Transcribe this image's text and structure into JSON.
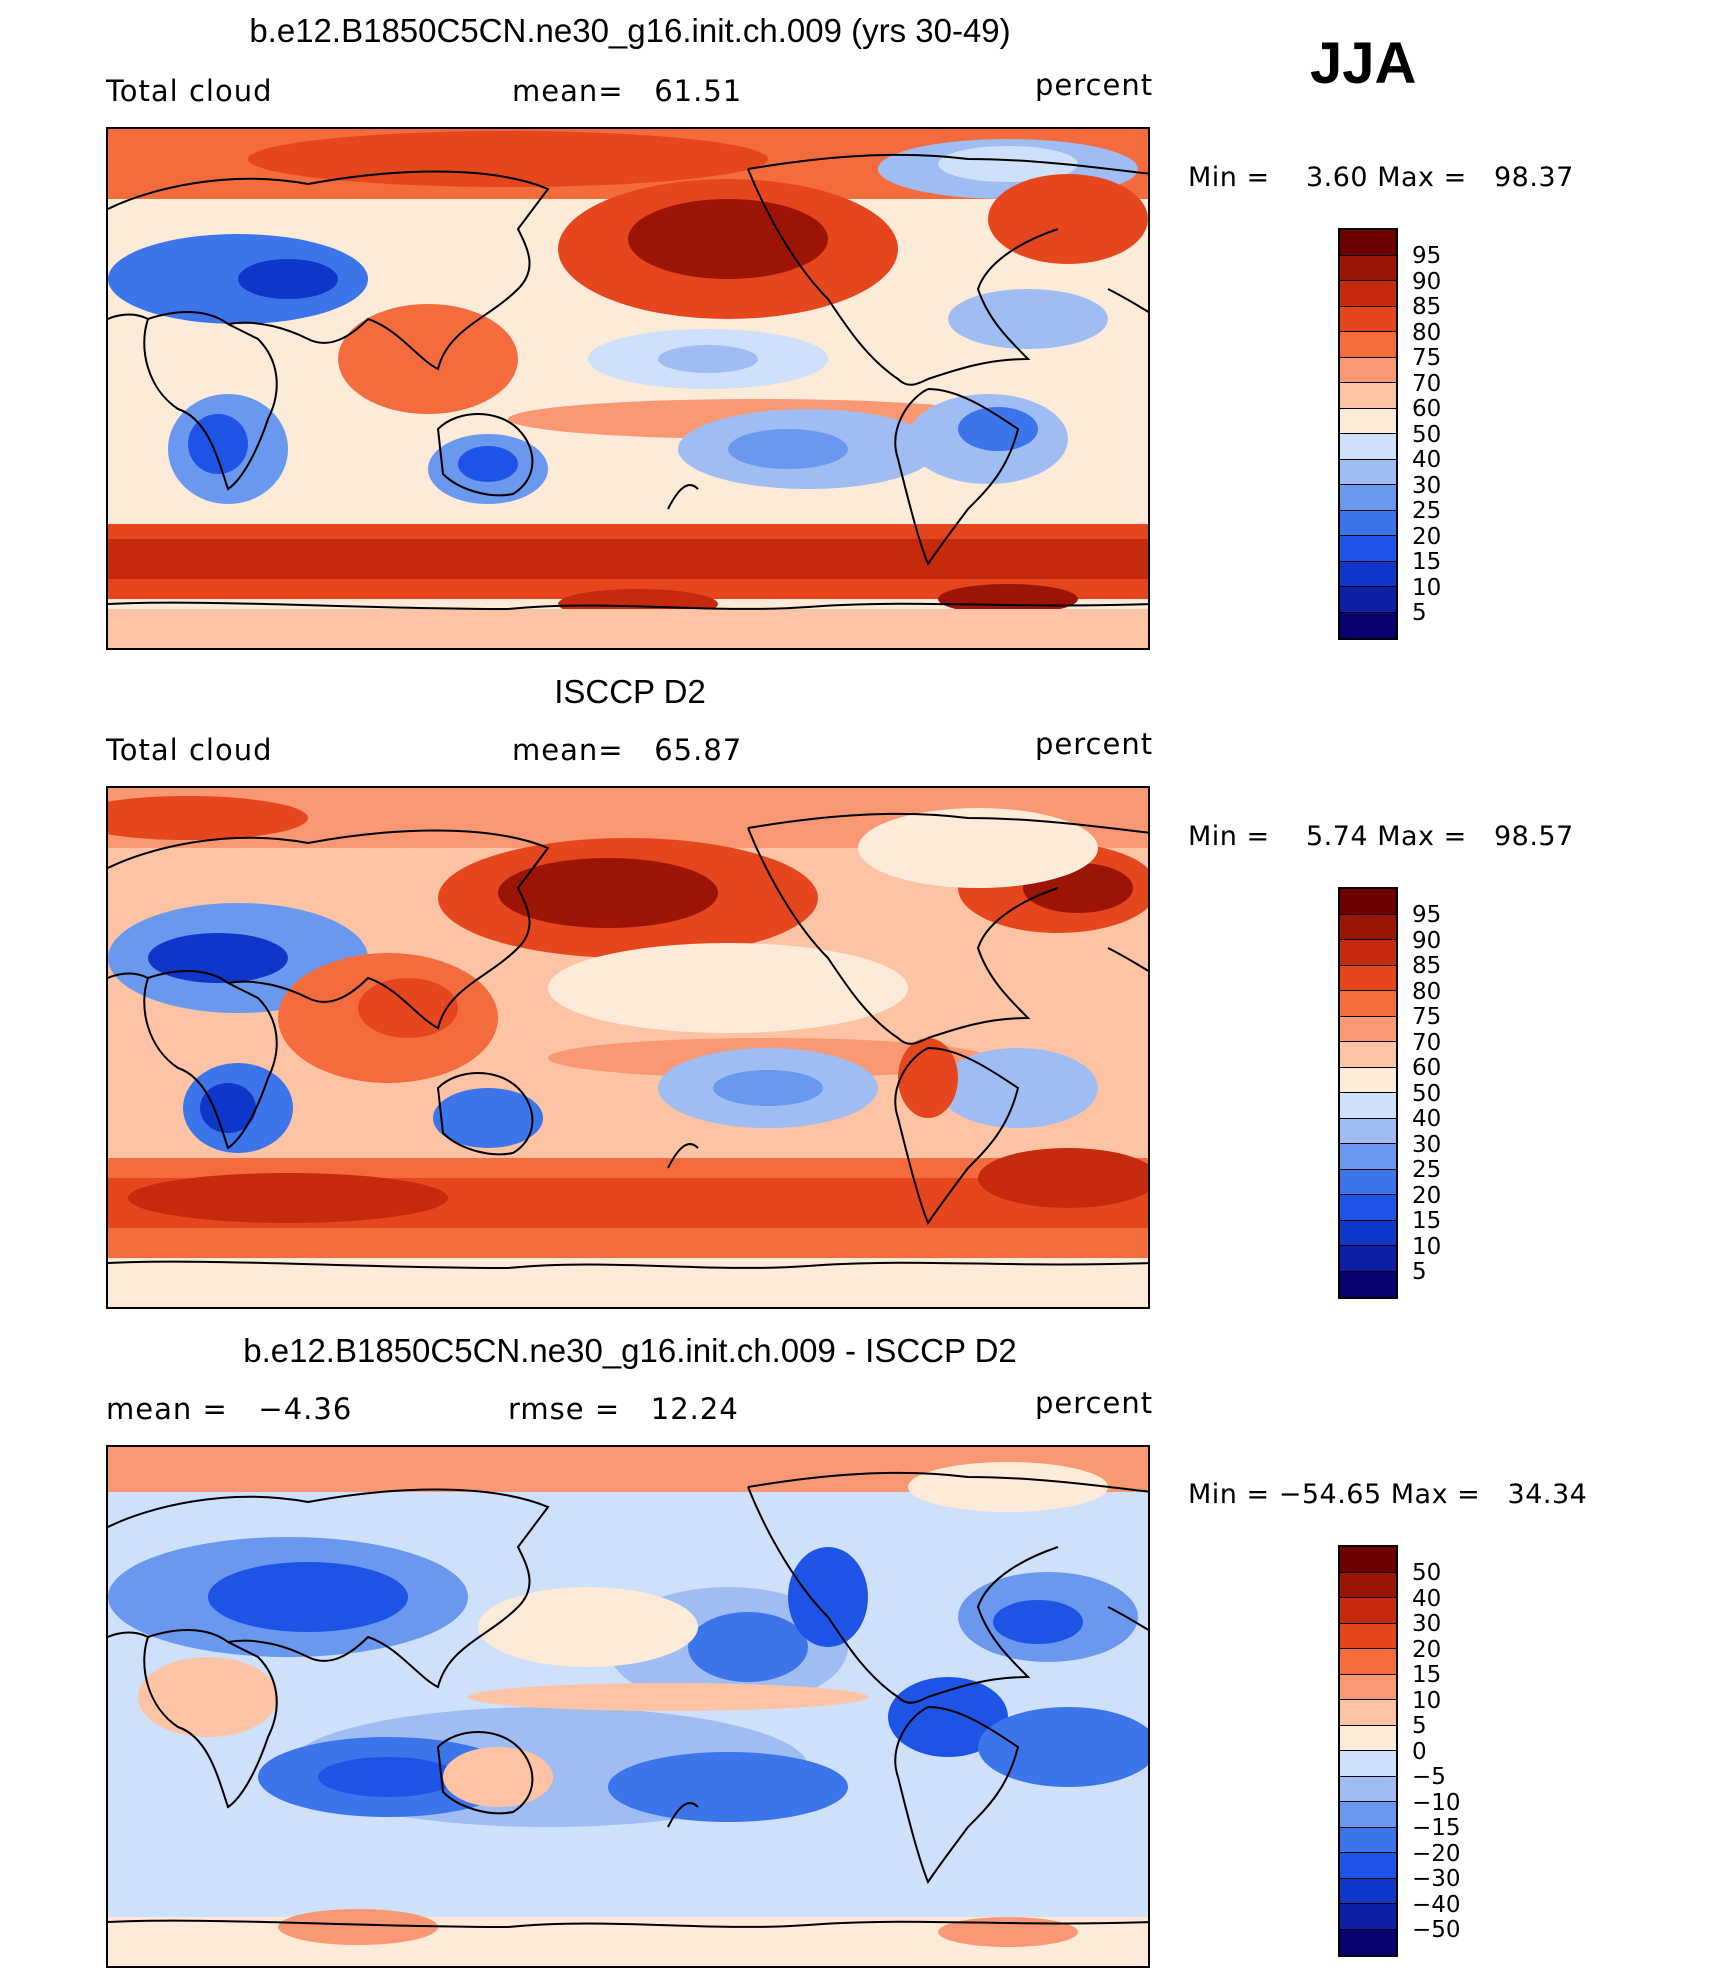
{
  "season": "JJA",
  "panels": [
    {
      "title": "b.e12.B1850C5CN.ne30_g16.init.ch.009 (yrs 30-49)",
      "left_label": "Total cloud",
      "center_label": "mean=   61.51",
      "units": "percent",
      "min_label": "Min =",
      "min_value": "3.60",
      "max_label": "Max =",
      "max_value": "98.37",
      "colorbar_labels": [
        "95",
        "90",
        "85",
        "80",
        "75",
        "70",
        "60",
        "50",
        "40",
        "30",
        "25",
        "20",
        "15",
        "10",
        "5"
      ]
    },
    {
      "title": "ISCCP D2",
      "left_label": "Total cloud",
      "center_label": "mean=   65.87",
      "units": "percent",
      "min_label": "Min =",
      "min_value": "5.74",
      "max_label": "Max =",
      "max_value": "98.57",
      "colorbar_labels": [
        "95",
        "90",
        "85",
        "80",
        "75",
        "70",
        "60",
        "50",
        "40",
        "30",
        "25",
        "20",
        "15",
        "10",
        "5"
      ]
    },
    {
      "title": "b.e12.B1850C5CN.ne30_g16.init.ch.009 - ISCCP D2",
      "left_label": "mean =   −4.36",
      "center_label": "rmse =   12.24",
      "units": "percent",
      "min_label": "Min =",
      "min_value": "−54.65",
      "max_label": "Max =",
      "max_value": "34.34",
      "colorbar_labels": [
        "50",
        "40",
        "30",
        "20",
        "15",
        "10",
        "5",
        "0",
        "−5",
        "−10",
        "−15",
        "−20",
        "−30",
        "−40",
        "−50"
      ]
    }
  ],
  "colors": {
    "scale": [
      "#08006e",
      "#0b1ea4",
      "#0f36c8",
      "#1e54e6",
      "#3c74ea",
      "#6a98ee",
      "#9fbdf3",
      "#cfe0fa",
      "#fcebd9",
      "#fcc4a5",
      "#f99873",
      "#f46c3e",
      "#e6461e",
      "#c52a0c",
      "#9b1406",
      "#6e0000"
    ],
    "abs_background": "#fbe3d4",
    "coast": "#000000"
  }
}
